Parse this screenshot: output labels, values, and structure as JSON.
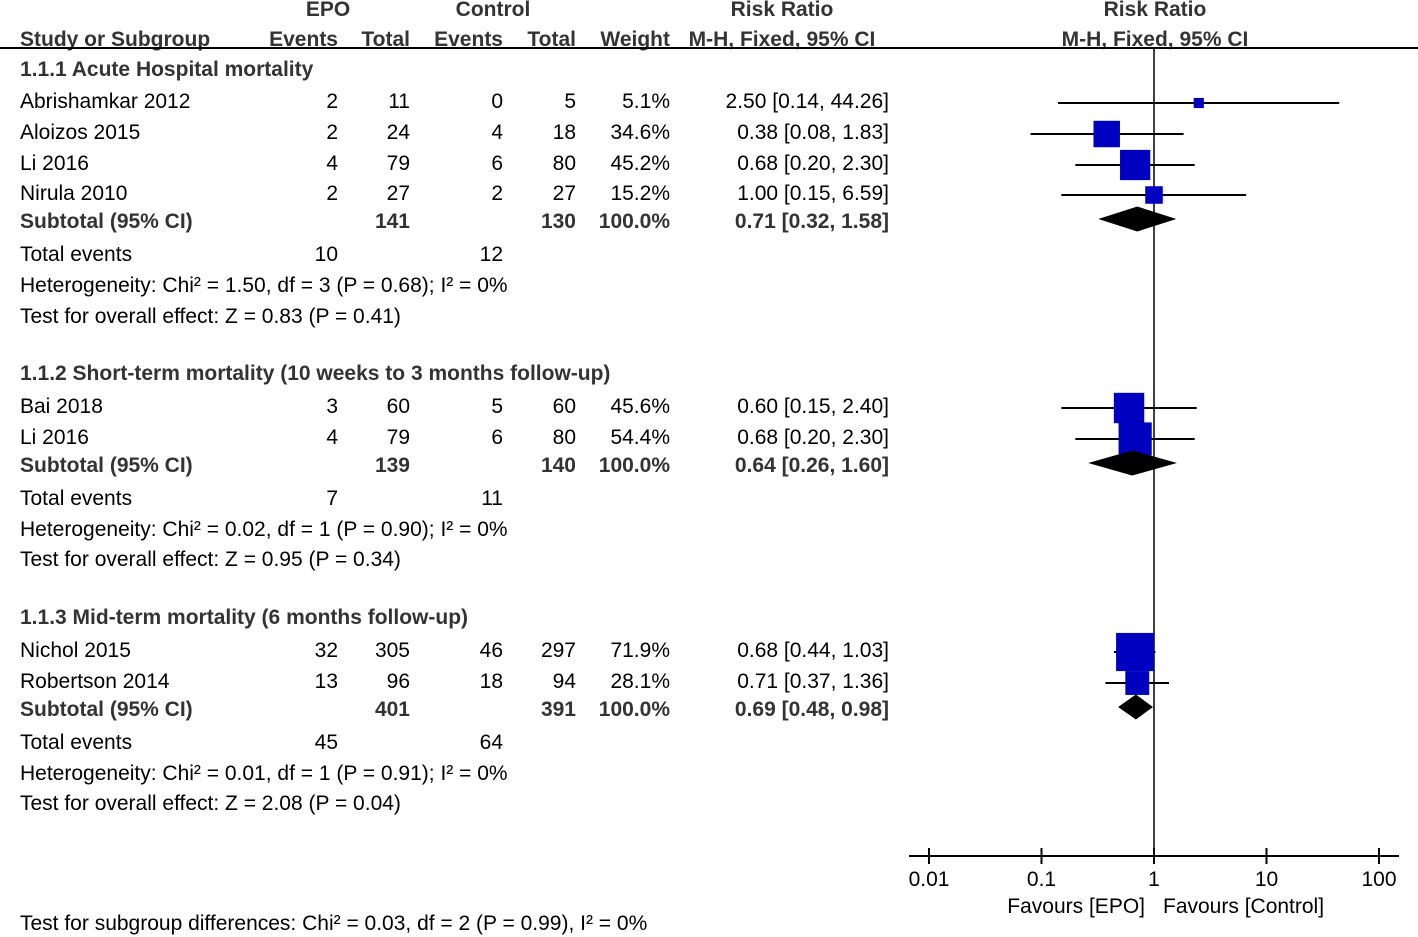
{
  "headers": {
    "group1": "EPO",
    "group2": "Control",
    "effect": "Risk Ratio",
    "plot_title": "Risk Ratio",
    "study": "Study or Subgroup",
    "events1": "Events",
    "total1": "Total",
    "events2": "Events",
    "total2": "Total",
    "weight": "Weight",
    "method": "M-H, Fixed, 95% CI",
    "plot_method": "M-H, Fixed, 95% CI"
  },
  "subgroups": [
    {
      "title": "1.1.1 Acute Hospital mortality",
      "studies": [
        {
          "name": "Abrishamkar 2012",
          "e1": "2",
          "t1": "11",
          "e2": "0",
          "t2": "5",
          "weight": "5.1%",
          "ci_text": "2.50 [0.14, 44.26]"
        },
        {
          "name": "Aloizos 2015",
          "e1": "2",
          "t1": "24",
          "e2": "4",
          "t2": "18",
          "weight": "34.6%",
          "ci_text": "0.38 [0.08, 1.83]"
        },
        {
          "name": "Li 2016",
          "e1": "4",
          "t1": "79",
          "e2": "6",
          "t2": "80",
          "weight": "45.2%",
          "ci_text": "0.68 [0.20, 2.30]"
        },
        {
          "name": "Nirula 2010",
          "e1": "2",
          "t1": "27",
          "e2": "2",
          "t2": "27",
          "weight": "15.2%",
          "ci_text": "1.00 [0.15, 6.59]"
        }
      ],
      "subtotal": {
        "label": "Subtotal (95% CI)",
        "t1": "141",
        "t2": "130",
        "weight": "100.0%",
        "ci_text": "0.71 [0.32, 1.58]"
      },
      "total_events": {
        "label": "Total events",
        "e1": "10",
        "e2": "12"
      },
      "heterogeneity": "Heterogeneity: Chi² = 1.50, df = 3 (P = 0.68); I² = 0%",
      "overall": "Test for overall effect: Z = 0.83 (P = 0.41)"
    },
    {
      "title": "1.1.2 Short-term mortality (10 weeks to 3 months follow-up)",
      "studies": [
        {
          "name": "Bai 2018",
          "e1": "3",
          "t1": "60",
          "e2": "5",
          "t2": "60",
          "weight": "45.6%",
          "ci_text": "0.60 [0.15, 2.40]"
        },
        {
          "name": "Li 2016",
          "e1": "4",
          "t1": "79",
          "e2": "6",
          "t2": "80",
          "weight": "54.4%",
          "ci_text": "0.68 [0.20, 2.30]"
        }
      ],
      "subtotal": {
        "label": "Subtotal (95% CI)",
        "t1": "139",
        "t2": "140",
        "weight": "100.0%",
        "ci_text": "0.64 [0.26, 1.60]"
      },
      "total_events": {
        "label": "Total events",
        "e1": "7",
        "e2": "11"
      },
      "heterogeneity": "Heterogeneity: Chi² = 0.02, df = 1 (P = 0.90); I² = 0%",
      "overall": "Test for overall effect: Z = 0.95 (P = 0.34)"
    },
    {
      "title": "1.1.3 Mid-term mortality (6 months follow-up)",
      "studies": [
        {
          "name": "Nichol 2015",
          "e1": "32",
          "t1": "305",
          "e2": "46",
          "t2": "297",
          "weight": "71.9%",
          "ci_text": "0.68 [0.44, 1.03]"
        },
        {
          "name": "Robertson 2014",
          "e1": "13",
          "t1": "96",
          "e2": "18",
          "t2": "94",
          "weight": "28.1%",
          "ci_text": "0.71 [0.37, 1.36]"
        }
      ],
      "subtotal": {
        "label": "Subtotal (95% CI)",
        "t1": "401",
        "t2": "391",
        "weight": "100.0%",
        "ci_text": "0.69 [0.48, 0.98]"
      },
      "total_events": {
        "label": "Total events",
        "e1": "45",
        "e2": "64"
      },
      "heterogeneity": "Heterogeneity: Chi² = 0.01, df = 1 (P = 0.91); I² = 0%",
      "overall": "Test for overall effect: Z = 2.08 (P = 0.04)"
    }
  ],
  "footer": {
    "subgroup_test": "Test for subgroup differences: Chi² = 0.03, df = 2 (P = 0.99), I² = 0%",
    "favours_left": "Favours [EPO]",
    "favours_right": "Favours [Control]"
  },
  "colors": {
    "marker": "#0000c0",
    "diamond": "#000000",
    "line": "#000000",
    "bold_text": "#333333"
  },
  "chart_data": {
    "type": "forest",
    "scale": "log",
    "xlim": [
      0.01,
      100
    ],
    "ticks": [
      0.01,
      0.1,
      1,
      10,
      100
    ],
    "tick_labels": [
      "0.01",
      "0.1",
      "1",
      "10",
      "100"
    ],
    "null_value": 1,
    "subgroups": [
      {
        "studies": [
          {
            "rr": 2.5,
            "lo": 0.14,
            "hi": 44.26,
            "w": 5.1
          },
          {
            "rr": 0.38,
            "lo": 0.08,
            "hi": 1.83,
            "w": 34.6
          },
          {
            "rr": 0.68,
            "lo": 0.2,
            "hi": 2.3,
            "w": 45.2
          },
          {
            "rr": 1.0,
            "lo": 0.15,
            "hi": 6.59,
            "w": 15.2
          }
        ],
        "subtotal": {
          "rr": 0.71,
          "lo": 0.32,
          "hi": 1.58
        }
      },
      {
        "studies": [
          {
            "rr": 0.6,
            "lo": 0.15,
            "hi": 2.4,
            "w": 45.6
          },
          {
            "rr": 0.68,
            "lo": 0.2,
            "hi": 2.3,
            "w": 54.4
          }
        ],
        "subtotal": {
          "rr": 0.64,
          "lo": 0.26,
          "hi": 1.6
        }
      },
      {
        "studies": [
          {
            "rr": 0.68,
            "lo": 0.44,
            "hi": 1.03,
            "w": 71.9
          },
          {
            "rr": 0.71,
            "lo": 0.37,
            "hi": 1.36,
            "w": 28.1
          }
        ],
        "subtotal": {
          "rr": 0.69,
          "lo": 0.48,
          "hi": 0.98
        }
      }
    ]
  }
}
